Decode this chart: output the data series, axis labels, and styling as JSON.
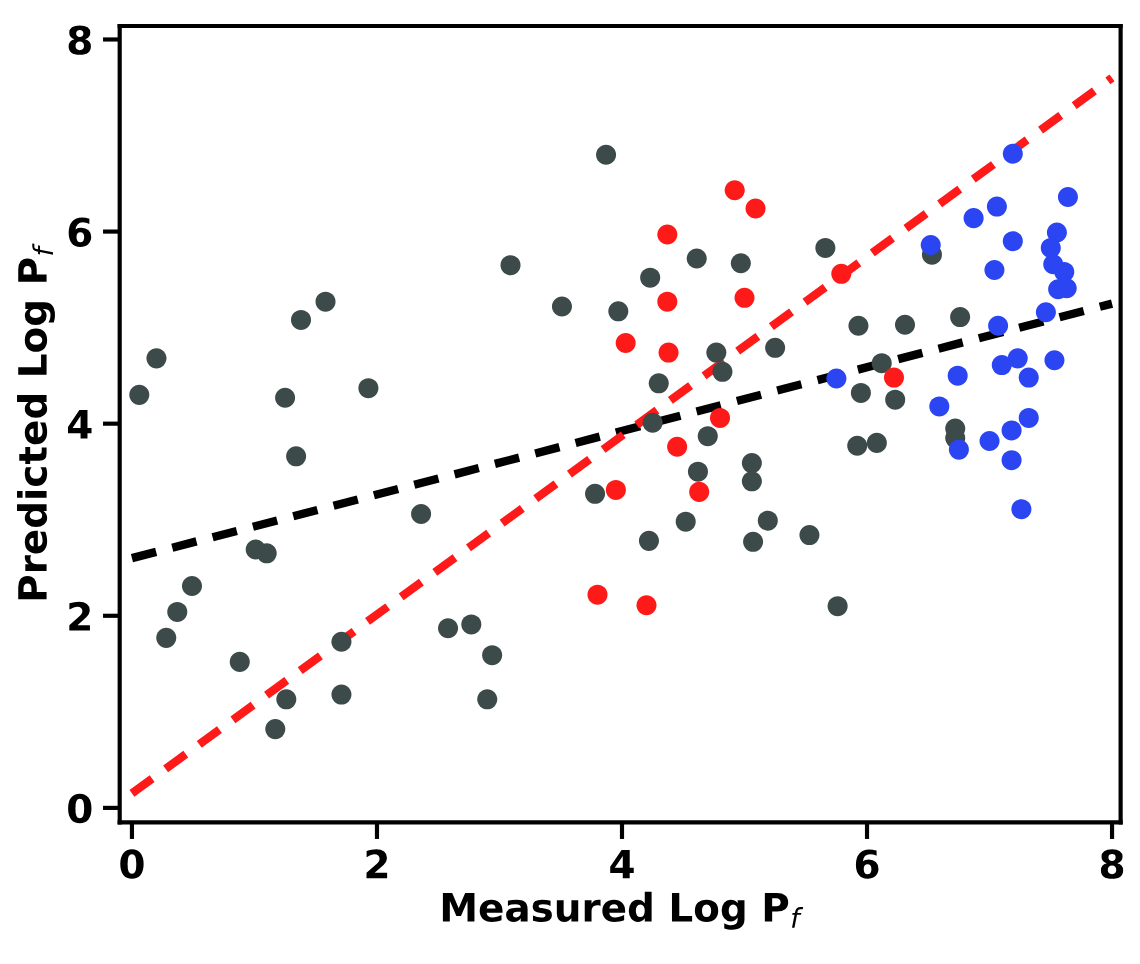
{
  "chart_data": {
    "type": "scatter",
    "xlabel": "Measured Log P$_{f}$",
    "ylabel": "Predicted Log P$_{f}$",
    "xlim": [
      -0.1,
      8.07
    ],
    "ylim": [
      -0.15,
      8.14
    ],
    "xticks": [
      0,
      2,
      4,
      6,
      8
    ],
    "yticks": [
      0,
      2,
      4,
      6,
      8
    ],
    "grid": false,
    "legend": false,
    "marker": "circle",
    "series": [
      {
        "color": "#3d4a4a",
        "x": [
          0.06,
          0.2,
          1.25,
          1.38,
          1.58,
          1.34,
          1.93,
          3.09,
          3.51,
          3.87,
          3.78,
          2.36,
          1.01,
          1.1,
          0.49,
          0.37,
          0.28,
          0.88,
          1.71,
          1.26,
          1.71,
          1.17,
          2.58,
          2.77,
          2.94,
          2.9,
          3.97,
          4.23,
          4.61,
          4.97,
          5.66,
          6.53,
          4.77,
          4.82,
          5.25,
          4.3,
          4.25,
          4.7,
          4.62,
          5.06,
          5.06,
          4.52,
          4.22,
          5.19,
          5.07,
          5.53,
          5.76,
          5.93,
          6.31,
          6.76,
          6.12,
          5.95,
          6.23,
          5.92,
          6.08,
          6.72,
          6.72
        ],
        "values": [
          4.3,
          4.68,
          4.27,
          5.08,
          5.27,
          3.66,
          4.37,
          5.65,
          5.22,
          6.8,
          3.27,
          3.06,
          2.69,
          2.65,
          2.31,
          2.04,
          1.77,
          1.52,
          1.73,
          1.13,
          1.18,
          0.82,
          1.87,
          1.91,
          1.59,
          1.13,
          5.17,
          5.52,
          5.72,
          5.67,
          5.83,
          5.76,
          4.74,
          4.54,
          4.79,
          4.42,
          4.01,
          3.87,
          3.5,
          3.59,
          3.4,
          2.98,
          2.78,
          2.99,
          2.77,
          2.84,
          2.1,
          5.02,
          5.03,
          5.11,
          4.63,
          4.32,
          4.25,
          3.77,
          3.8,
          3.95,
          3.85
        ]
      },
      {
        "color": "#ff1a1a",
        "x": [
          4.92,
          5.09,
          4.37,
          4.37,
          5.0,
          4.03,
          4.38,
          5.79,
          6.22,
          4.8,
          4.45,
          3.95,
          4.63,
          3.8,
          4.2
        ],
        "values": [
          6.43,
          6.24,
          5.97,
          5.27,
          5.31,
          4.84,
          4.74,
          5.56,
          4.48,
          4.06,
          3.76,
          3.31,
          3.29,
          2.22,
          2.11
        ]
      },
      {
        "color": "#2b45f2",
        "x": [
          7.19,
          7.64,
          7.06,
          6.87,
          6.52,
          7.19,
          7.55,
          7.5,
          7.04,
          7.52,
          7.61,
          7.56,
          7.63,
          7.46,
          7.07,
          7.23,
          7.1,
          7.53,
          7.32,
          6.74,
          5.75,
          6.59,
          7.32,
          7.18,
          7.0,
          6.75,
          7.18,
          7.26
        ],
        "values": [
          6.81,
          6.36,
          6.26,
          6.14,
          5.86,
          5.9,
          5.99,
          5.83,
          5.6,
          5.66,
          5.58,
          5.4,
          5.41,
          5.16,
          5.02,
          4.68,
          4.61,
          4.66,
          4.48,
          4.5,
          4.47,
          4.18,
          4.06,
          3.93,
          3.82,
          3.73,
          3.62,
          3.11
        ]
      },
      {
        "type": "line",
        "color": "#000000",
        "line_style": "dashed",
        "marker": "none",
        "x": [
          0,
          8
        ],
        "values": [
          2.6,
          5.25
        ]
      },
      {
        "type": "line",
        "color": "#ff1a1a",
        "line_style": "dashed",
        "marker": "none",
        "x": [
          0,
          8
        ],
        "values": [
          0.15,
          7.6
        ]
      }
    ]
  }
}
